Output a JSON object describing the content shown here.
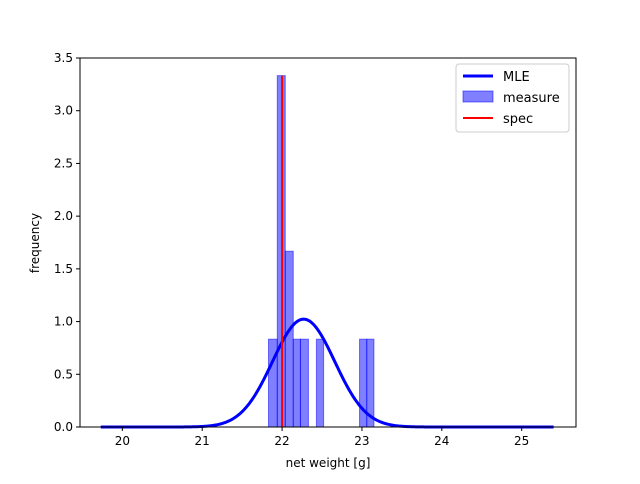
{
  "chart_data": {
    "type": "bar",
    "title": "",
    "xlabel": "net weight [g]",
    "ylabel": "frequency",
    "xlim": [
      19.47,
      25.68
    ],
    "ylim": [
      0,
      3.5
    ],
    "xticks": [
      20,
      21,
      22,
      23,
      24,
      25
    ],
    "yticks": [
      0.0,
      0.5,
      1.0,
      1.5,
      2.0,
      2.5,
      3.0,
      3.5
    ],
    "xtick_labels": [
      "20",
      "21",
      "22",
      "23",
      "24",
      "25"
    ],
    "ytick_labels": [
      "0.0",
      "0.5",
      "1.0",
      "1.5",
      "2.0",
      "2.5",
      "3.0",
      "3.5"
    ],
    "grid": false,
    "legend_position": "top-right",
    "legend": [
      "MLE",
      "measure",
      "spec"
    ],
    "series": [
      {
        "name": "MLE",
        "kind": "normal-pdf-line",
        "color": "#0000ff",
        "mean": 22.27,
        "sd": 0.39,
        "x_range": [
          19.73,
          25.4
        ]
      },
      {
        "name": "measure",
        "kind": "histogram",
        "color": "#0000ff",
        "opacity": 0.5,
        "bins": [
          {
            "x0": 21.83,
            "x1": 21.94,
            "value": 0.833
          },
          {
            "x0": 21.94,
            "x1": 22.04,
            "value": 3.333
          },
          {
            "x0": 22.04,
            "x1": 22.14,
            "value": 1.667
          },
          {
            "x0": 22.14,
            "x1": 22.23,
            "value": 0.833
          },
          {
            "x0": 22.23,
            "x1": 22.33,
            "value": 0.833
          },
          {
            "x0": 22.43,
            "x1": 22.52,
            "value": 0.833
          },
          {
            "x0": 22.97,
            "x1": 23.06,
            "value": 0.833
          },
          {
            "x0": 23.06,
            "x1": 23.15,
            "value": 0.833
          }
        ]
      },
      {
        "name": "spec",
        "kind": "vertical-line",
        "color": "#ff0000",
        "x": 22.0,
        "y_range": [
          0,
          3.333
        ]
      }
    ]
  }
}
